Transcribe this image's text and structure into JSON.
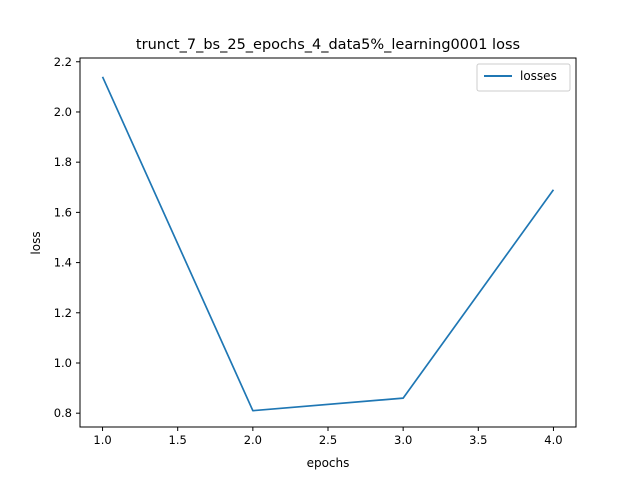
{
  "chart_data": {
    "type": "line",
    "title": "trunct_7_bs_25_epochs_4_data5%_learning0001 loss",
    "xlabel": "epochs",
    "ylabel": "loss",
    "xlim": [
      0.85,
      4.15
    ],
    "ylim": [
      0.745,
      2.215
    ],
    "xticks": [
      1.0,
      1.5,
      2.0,
      2.5,
      3.0,
      3.5,
      4.0
    ],
    "xtick_labels": [
      "1.0",
      "1.5",
      "2.0",
      "2.5",
      "3.0",
      "3.5",
      "4.0"
    ],
    "yticks": [
      0.8,
      1.0,
      1.2,
      1.4,
      1.6,
      1.8,
      2.0,
      2.2
    ],
    "ytick_labels": [
      "0.8",
      "1.0",
      "1.2",
      "1.4",
      "1.6",
      "1.8",
      "2.0",
      "2.2"
    ],
    "grid": false,
    "legend_position": "top-right",
    "series": [
      {
        "name": "losses",
        "color": "#1f77b4",
        "x": [
          1.0,
          2.0,
          3.0,
          4.0
        ],
        "y": [
          2.14,
          0.81,
          0.86,
          1.69
        ]
      }
    ]
  }
}
